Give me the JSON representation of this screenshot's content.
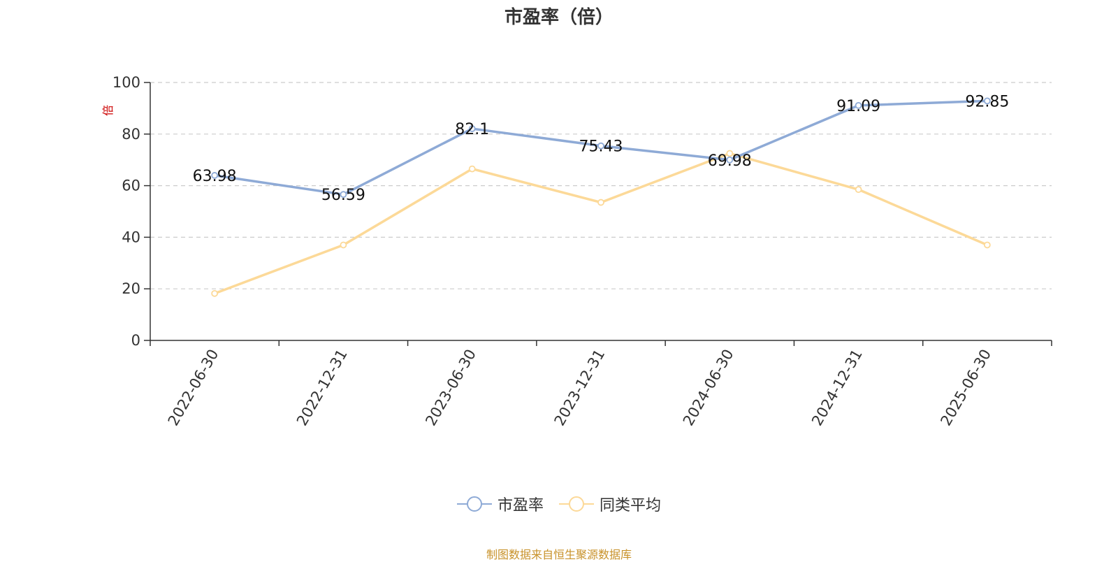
{
  "chart_data": {
    "type": "line",
    "title": "市盈率（倍）",
    "ylabel": "倍",
    "ylim": [
      0,
      100
    ],
    "yticks": [
      0,
      20,
      40,
      60,
      80,
      100
    ],
    "grid": true,
    "legend_position": "bottom",
    "categories": [
      "2022-06-30",
      "2022-12-31",
      "2023-06-30",
      "2023-12-31",
      "2024-06-30",
      "2024-12-31",
      "2025-06-30"
    ],
    "series": [
      {
        "name": "市盈率",
        "color": "#8eaad6",
        "values": [
          63.98,
          56.59,
          82.1,
          75.43,
          69.98,
          91.09,
          92.85
        ],
        "labels": [
          "63.98",
          "56.59",
          "82.1",
          "75.43",
          "69.98",
          "91.09",
          "92.85"
        ]
      },
      {
        "name": "同类平均",
        "color": "#fcd998",
        "values": [
          18.2,
          37.0,
          66.5,
          53.5,
          72.5,
          58.5,
          37.0
        ]
      }
    ]
  },
  "source_note": "制图数据来自恒生聚源数据库"
}
